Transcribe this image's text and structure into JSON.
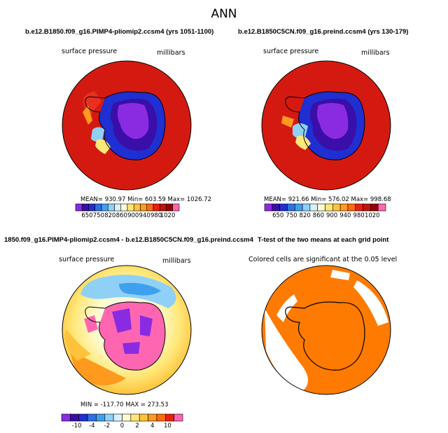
{
  "main_title": "ANN",
  "panels": [
    {
      "title": "b.e12.B1850.f09_g16.PIMP4-pliomip2.ccsm4 (yrs 1051-1100)",
      "variable": "surface pressure",
      "units": "millibars",
      "stats": "MEAN= 930.97    Min= 603.59    Max= 1026.72",
      "colorbar": {
        "colors": [
          "#8a2be2",
          "#3a0ea8",
          "#1f2fd1",
          "#2f6fe0",
          "#3fa0ee",
          "#8fd0f6",
          "#d8f0ff",
          "#fffbd0",
          "#ffe87a",
          "#ffc23a",
          "#ff9a1f",
          "#ff6a10",
          "#e82010",
          "#c41010",
          "#9a0000",
          "#ff66b2"
        ],
        "labels": [
          "650",
          "750",
          "820",
          "860",
          "900",
          "940",
          "980",
          "1020"
        ]
      }
    },
    {
      "title": "b.e12.B1850C5CN.f09_g16.preind.ccsm4 (yrs 130-179)",
      "variable": "surface pressure",
      "units": "millibars",
      "stats": "MEAN= 921.66    Min= 576.02    Max= 998.68",
      "colorbar": {
        "colors": [
          "#8a2be2",
          "#3a0ea8",
          "#1f2fd1",
          "#2f6fe0",
          "#3fa0ee",
          "#8fd0f6",
          "#d8f0ff",
          "#fffbd0",
          "#ffe87a",
          "#ffc23a",
          "#ff9a1f",
          "#ff6a10",
          "#e82010",
          "#c41010",
          "#9a0000",
          "#ff66b2"
        ],
        "labels": [
          "650",
          "750",
          "820",
          "860",
          "900",
          "940",
          "980",
          "1020"
        ]
      }
    },
    {
      "title": "1850.f09_g16.PIMP4-pliomip2.ccsm4 - b.e12.B1850C5CN.f09_g16.preind.ccsm4",
      "variable": "surface pressure",
      "units": "millibars",
      "stats": "MIN = -117.70  MAX = 273.53",
      "colorbar": {
        "colors": [
          "#8a2be2",
          "#3a0ea8",
          "#1f2fd1",
          "#2f6fe0",
          "#3fa0ee",
          "#8fd0f6",
          "#d8f0ff",
          "#fffbd0",
          "#ffe87a",
          "#ffc23a",
          "#ff9a1f",
          "#ff6a10",
          "#e82010",
          "#ff66b2"
        ],
        "labels": [
          "-10",
          "-4",
          "-2",
          "0",
          "2",
          "4",
          "10"
        ]
      }
    },
    {
      "title": "T-test of the two means at each grid point",
      "variable": "Colored cells are significant at the 0.05 level",
      "units": "",
      "stats": "",
      "colorbar": null
    }
  ],
  "chart_data": [
    {
      "type": "heatmap",
      "title": "b.e12.B1850.f09_g16.PIMP4-pliomip2.ccsm4 (yrs 1051-1100)",
      "variable": "surface pressure",
      "units": "millibars",
      "mean": 930.97,
      "min": 603.59,
      "max": 1026.72
    },
    {
      "type": "heatmap",
      "title": "b.e12.B1850C5CN.f09_g16.preind.ccsm4 (yrs 130-179)",
      "variable": "surface pressure",
      "units": "millibars",
      "mean": 921.66,
      "min": 576.02,
      "max": 998.68
    },
    {
      "type": "heatmap",
      "title": "1850.f09_g16.PIMP4-pliomip2.ccsm4 - b.e12.B1850C5CN.f09_g16.preind.ccsm4",
      "variable": "surface pressure",
      "units": "millibars",
      "min": -117.7,
      "max": 273.53
    },
    {
      "type": "heatmap",
      "title": "T-test of the two means at each grid point",
      "subtitle": "Colored cells are significant at the 0.05 level"
    }
  ]
}
